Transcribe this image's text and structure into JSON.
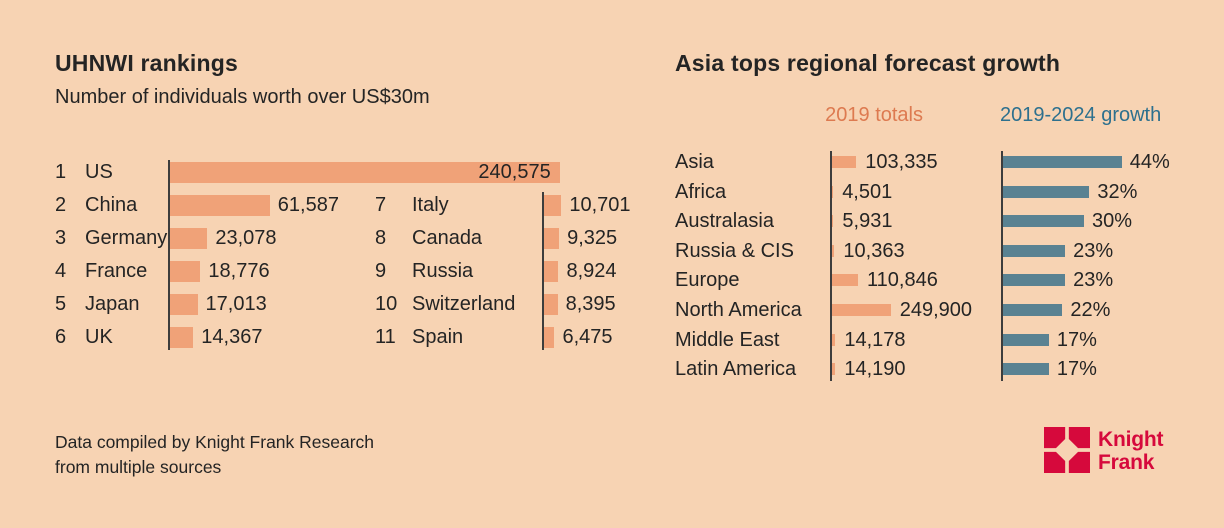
{
  "page": {
    "background": "#f7d3b3",
    "text_color": "#242424",
    "axis_color": "#3d3d3d"
  },
  "chart_data": [
    {
      "type": "bar",
      "orientation": "horizontal",
      "title": "UHNWI rankings",
      "subtitle": "Number of individuals worth over US$30m",
      "ranks": [
        1,
        2,
        3,
        4,
        5,
        6,
        7,
        8,
        9,
        10,
        11
      ],
      "categories": [
        "US",
        "China",
        "Germany",
        "France",
        "Japan",
        "UK",
        "Italy",
        "Canada",
        "Russia",
        "Switzerland",
        "Spain"
      ],
      "values": [
        240575,
        61587,
        23078,
        18776,
        17013,
        14367,
        10701,
        9325,
        8924,
        8395,
        6475
      ],
      "value_labels": [
        "240,575",
        "61,587",
        "23,078",
        "18,776",
        "17,013",
        "14,367",
        "10,701",
        "9,325",
        "8,924",
        "8,395",
        "6,475"
      ],
      "bar_color": "#f0a278",
      "layout_note": "two columns: ranks 1-6 left, 7-11 right; value of rank 1 shown inside its bar",
      "grid": false,
      "xlim": [
        0,
        240575
      ]
    },
    {
      "type": "bar",
      "orientation": "horizontal",
      "title": "Asia tops regional forecast growth",
      "categories": [
        "Asia",
        "Africa",
        "Australasia",
        "Russia & CIS",
        "Europe",
        "North America",
        "Middle East",
        "Latin America"
      ],
      "series": [
        {
          "name": "2019 totals",
          "values": [
            103335,
            4501,
            5931,
            10363,
            110846,
            249900,
            14178,
            14190
          ],
          "value_labels": [
            "103,335",
            "4,501",
            "5,931",
            "10,363",
            "110,846",
            "249,900",
            "14,178",
            "14,190"
          ],
          "bar_color": "#f0a278",
          "header_color": "#dd7a50"
        },
        {
          "name": "2019-2024 growth",
          "values": [
            44,
            32,
            30,
            23,
            23,
            22,
            17,
            17
          ],
          "value_labels": [
            "44%",
            "32%",
            "30%",
            "23%",
            "23%",
            "22%",
            "17%",
            "17%"
          ],
          "bar_color": "#5a8292",
          "header_color": "#2d708e"
        }
      ],
      "legend_position": "top",
      "grid": false
    }
  ],
  "footer": {
    "line1": "Data compiled by Knight Frank Research",
    "line2": "from multiple sources"
  },
  "logo": {
    "brand": "Knight Frank",
    "line1": "Knight",
    "line2": "Frank",
    "color": "#d6093c"
  }
}
